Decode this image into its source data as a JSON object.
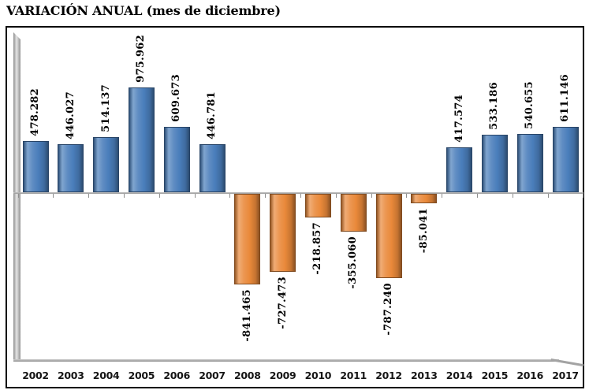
{
  "title": "VARIACIÓN ANUAL (mes de diciembre)",
  "chart_data": {
    "type": "bar",
    "title": "VARIACIÓN ANUAL (mes de diciembre)",
    "categories": [
      "2002",
      "2003",
      "2004",
      "2005",
      "2006",
      "2007",
      "2008",
      "2009",
      "2010",
      "2011",
      "2012",
      "2013",
      "2014",
      "2015",
      "2016",
      "2017"
    ],
    "values": [
      478282,
      446027,
      514137,
      975962,
      609673,
      446781,
      -841465,
      -727473,
      -218857,
      -355060,
      -787240,
      -85041,
      417574,
      533186,
      540655,
      611146
    ],
    "data_labels": [
      "478.282",
      "446.027",
      "514.137",
      "975.962",
      "609.673",
      "446.781",
      "-841.465",
      "-727.473",
      "-218.857",
      "-355.060",
      "-787.240",
      "-85.041",
      "417.574",
      "533.186",
      "540.655",
      "611.146"
    ],
    "xlabel": "",
    "ylabel": "",
    "y_axis_labels_shown": false,
    "gridlines": false,
    "legend": "none",
    "data_label_rotation_deg": -90,
    "positive_color": "#4a7ebb",
    "negative_color": "#e9893a",
    "axis_color": "#a6a6a6",
    "frame_border_color": "#000000",
    "background_color": "#ffffff"
  }
}
